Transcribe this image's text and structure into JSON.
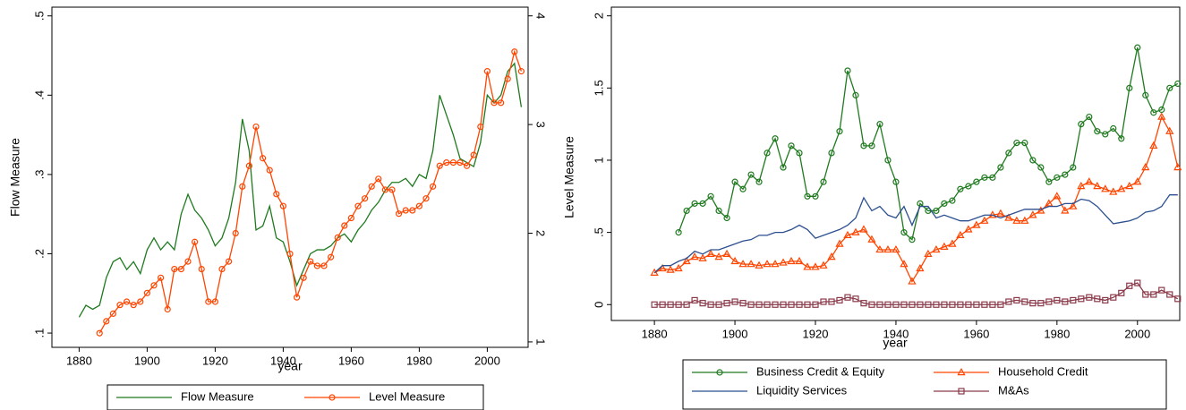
{
  "chart_data": [
    {
      "type": "line",
      "xlabel": "year",
      "ylabel": "Flow Measure",
      "y2label": "Level Measure",
      "x": [
        1880,
        1882,
        1884,
        1886,
        1888,
        1890,
        1892,
        1894,
        1896,
        1898,
        1900,
        1902,
        1904,
        1906,
        1908,
        1910,
        1912,
        1914,
        1916,
        1918,
        1920,
        1922,
        1924,
        1926,
        1928,
        1930,
        1932,
        1934,
        1936,
        1938,
        1940,
        1942,
        1944,
        1946,
        1948,
        1950,
        1952,
        1954,
        1956,
        1958,
        1960,
        1962,
        1964,
        1966,
        1968,
        1970,
        1972,
        1974,
        1976,
        1978,
        1980,
        1982,
        1984,
        1986,
        1988,
        1990,
        1992,
        1994,
        1996,
        1998,
        2000,
        2002,
        2004,
        2006,
        2008,
        2010
      ],
      "xlim": [
        1872,
        2012
      ],
      "xticks": [
        1880,
        1900,
        1920,
        1940,
        1960,
        1980,
        2000
      ],
      "ylim": [
        0.082,
        0.511
      ],
      "yticks": [
        {
          "value": 0.1,
          "label": ".1"
        },
        {
          "value": 0.2,
          "label": ".2"
        },
        {
          "value": 0.3,
          "label": ".3"
        },
        {
          "value": 0.4,
          "label": ".4"
        },
        {
          "value": 0.5,
          "label": ".5"
        }
      ],
      "y2lim": [
        0.95,
        4.08
      ],
      "y2ticks": [
        1,
        2,
        3,
        4
      ],
      "grid": false,
      "legend": "bottom",
      "series": [
        {
          "name": "Flow Measure",
          "color": "#1f7a1f",
          "marker": "none",
          "axis": "y",
          "values": [
            0.12,
            0.135,
            0.13,
            0.135,
            0.17,
            0.19,
            0.195,
            0.18,
            0.19,
            0.175,
            0.205,
            0.22,
            0.205,
            0.215,
            0.205,
            0.25,
            0.275,
            0.255,
            0.245,
            0.23,
            0.21,
            0.22,
            0.245,
            0.29,
            0.37,
            0.33,
            0.23,
            0.235,
            0.26,
            0.22,
            0.215,
            0.19,
            0.16,
            0.18,
            0.2,
            0.205,
            0.205,
            0.21,
            0.22,
            0.225,
            0.215,
            0.23,
            0.24,
            0.255,
            0.265,
            0.28,
            0.29,
            0.29,
            0.295,
            0.285,
            0.3,
            0.295,
            0.33,
            0.4,
            0.375,
            0.35,
            0.32,
            0.315,
            0.31,
            0.34,
            0.4,
            0.39,
            0.4,
            0.43,
            0.44,
            0.385
          ]
        },
        {
          "name": "Level Measure",
          "color": "#ff4500",
          "marker": "circle",
          "axis": "y2",
          "values": [
            null,
            null,
            null,
            1.08,
            1.19,
            1.26,
            1.34,
            1.37,
            1.34,
            1.37,
            1.45,
            1.52,
            1.59,
            1.3,
            1.67,
            1.67,
            1.74,
            1.92,
            1.67,
            1.37,
            1.37,
            1.67,
            1.74,
            2.0,
            2.43,
            2.62,
            2.98,
            2.69,
            2.58,
            2.36,
            2.25,
            1.81,
            1.41,
            1.59,
            1.74,
            1.7,
            1.7,
            1.78,
            1.96,
            2.07,
            2.14,
            2.25,
            2.32,
            2.43,
            2.5,
            2.4,
            2.4,
            2.18,
            2.21,
            2.21,
            2.25,
            2.32,
            2.43,
            2.62,
            2.65,
            2.65,
            2.65,
            2.62,
            2.72,
            2.98,
            3.49,
            3.2,
            3.2,
            3.42,
            3.67,
            3.49
          ]
        }
      ]
    },
    {
      "type": "line",
      "xlabel": "year",
      "x": [
        1880,
        1882,
        1884,
        1886,
        1888,
        1890,
        1892,
        1894,
        1896,
        1898,
        1900,
        1902,
        1904,
        1906,
        1908,
        1910,
        1912,
        1914,
        1916,
        1918,
        1920,
        1922,
        1924,
        1926,
        1928,
        1930,
        1932,
        1934,
        1936,
        1938,
        1940,
        1942,
        1944,
        1946,
        1948,
        1950,
        1952,
        1954,
        1956,
        1958,
        1960,
        1962,
        1964,
        1966,
        1968,
        1970,
        1972,
        1974,
        1976,
        1978,
        1980,
        1982,
        1984,
        1986,
        1988,
        1990,
        1992,
        1994,
        1996,
        1998,
        2000,
        2002,
        2004,
        2006,
        2008,
        2010
      ],
      "xlim": [
        1869.3,
        2010.5
      ],
      "xticks": [
        1880,
        1900,
        1920,
        1940,
        1960,
        1980,
        2000
      ],
      "ylim": [
        -0.11,
        2.06
      ],
      "yticks": [
        0,
        {
          "value": 0.5,
          "label": ".5"
        },
        1,
        1.5,
        2
      ],
      "grid": false,
      "legend": "bottom",
      "series": [
        {
          "name": "Business Credit & Equity",
          "color": "#1f7a1f",
          "marker": "circle",
          "values": [
            null,
            null,
            null,
            0.5,
            0.65,
            0.7,
            0.7,
            0.75,
            0.65,
            0.6,
            0.85,
            0.8,
            0.9,
            0.85,
            1.05,
            1.15,
            0.95,
            1.1,
            1.05,
            0.75,
            0.75,
            0.85,
            1.05,
            1.2,
            1.62,
            1.45,
            1.1,
            1.1,
            1.25,
            1.0,
            0.85,
            0.5,
            0.45,
            0.7,
            0.65,
            0.65,
            0.7,
            0.72,
            0.8,
            0.82,
            0.85,
            0.88,
            0.88,
            0.95,
            1.05,
            1.12,
            1.12,
            1.0,
            0.95,
            0.85,
            0.88,
            0.9,
            0.95,
            1.25,
            1.3,
            1.2,
            1.18,
            1.22,
            1.15,
            1.5,
            1.78,
            1.45,
            1.33,
            1.35,
            1.5,
            1.53
          ]
        },
        {
          "name": "Household Credit",
          "color": "#ff4500",
          "marker": "triangle",
          "values": [
            0.22,
            0.25,
            0.24,
            0.25,
            0.3,
            0.33,
            0.32,
            0.35,
            0.33,
            0.35,
            0.3,
            0.28,
            0.28,
            0.27,
            0.28,
            0.28,
            0.29,
            0.3,
            0.3,
            0.26,
            0.26,
            0.27,
            0.33,
            0.42,
            0.48,
            0.5,
            0.52,
            0.45,
            0.38,
            0.38,
            0.38,
            0.28,
            0.16,
            0.25,
            0.35,
            0.38,
            0.4,
            0.42,
            0.48,
            0.52,
            0.55,
            0.58,
            0.62,
            0.63,
            0.6,
            0.58,
            0.58,
            0.62,
            0.65,
            0.7,
            0.75,
            0.65,
            0.68,
            0.82,
            0.85,
            0.82,
            0.8,
            0.78,
            0.8,
            0.82,
            0.85,
            0.95,
            1.1,
            1.3,
            1.2,
            0.95
          ]
        },
        {
          "name": "Liquidity Services",
          "color": "#2b4f8f",
          "marker": "none",
          "values": [
            0.22,
            0.27,
            0.27,
            0.3,
            0.32,
            0.37,
            0.35,
            0.38,
            0.38,
            0.4,
            0.42,
            0.44,
            0.45,
            0.48,
            0.48,
            0.5,
            0.5,
            0.52,
            0.55,
            0.52,
            0.46,
            0.48,
            0.5,
            0.52,
            0.55,
            0.6,
            0.74,
            0.65,
            0.68,
            0.62,
            0.6,
            0.68,
            0.55,
            0.68,
            0.68,
            0.6,
            0.62,
            0.6,
            0.58,
            0.58,
            0.6,
            0.62,
            0.62,
            0.6,
            0.62,
            0.64,
            0.66,
            0.66,
            0.66,
            0.68,
            0.68,
            0.7,
            0.7,
            0.73,
            0.72,
            0.68,
            0.62,
            0.56,
            0.57,
            0.58,
            0.6,
            0.64,
            0.65,
            0.68,
            0.76,
            0.76
          ]
        },
        {
          "name": "M&As",
          "color": "#8b3a4a",
          "marker": "square",
          "values": [
            0,
            0,
            0,
            0,
            0,
            0.03,
            0.01,
            0,
            0,
            0.01,
            0.02,
            0.01,
            0,
            0,
            0,
            0,
            0,
            0,
            0,
            0,
            0,
            0.02,
            0.02,
            0.03,
            0.05,
            0.04,
            0.01,
            0,
            0,
            0,
            0,
            0,
            0,
            0,
            0,
            0,
            0,
            0,
            0,
            0,
            0,
            0,
            0,
            0,
            0.02,
            0.03,
            0.02,
            0.01,
            0.01,
            0.02,
            0.03,
            0.02,
            0.03,
            0.04,
            0.05,
            0.04,
            0.03,
            0.05,
            0.08,
            0.13,
            0.15,
            0.07,
            0.07,
            0.1,
            0.07,
            0.04
          ]
        }
      ]
    }
  ]
}
